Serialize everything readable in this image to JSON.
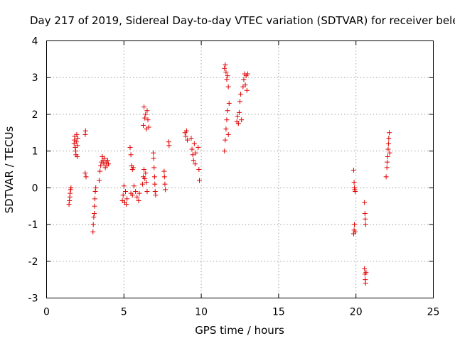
{
  "chart_data": {
    "type": "scatter",
    "title": "Day 217 of 2019, Sidereal Day-to-day VTEC variation (SDTVAR) for receiver bele",
    "xlabel": "GPS time / hours",
    "ylabel": "SDTVAR / TECUs",
    "xlim": [
      0,
      25
    ],
    "ylim": [
      -3,
      4
    ],
    "xticks": [
      0,
      5,
      10,
      15,
      20,
      25
    ],
    "yticks": [
      -3,
      -2,
      -1,
      0,
      1,
      2,
      3,
      4
    ],
    "xtick_labels": [
      "0",
      "5",
      "10",
      "15",
      "20",
      "25"
    ],
    "ytick_labels": [
      "-3",
      "-2",
      "-1",
      "0",
      "1",
      "2",
      "3",
      "4"
    ],
    "grid": true,
    "marker": "plus",
    "color": "#e00000",
    "series": [
      {
        "name": "SDTVAR",
        "points": [
          [
            1.45,
            -0.45
          ],
          [
            1.48,
            -0.35
          ],
          [
            1.5,
            -0.25
          ],
          [
            1.52,
            -0.15
          ],
          [
            1.55,
            -0.05
          ],
          [
            1.58,
            0.0
          ],
          [
            1.78,
            1.2
          ],
          [
            1.8,
            1.3
          ],
          [
            1.82,
            1.4
          ],
          [
            1.85,
            1.1
          ],
          [
            1.88,
            1.0
          ],
          [
            1.9,
            0.9
          ],
          [
            1.92,
            1.25
          ],
          [
            1.95,
            1.45
          ],
          [
            1.98,
            0.85
          ],
          [
            2.0,
            1.15
          ],
          [
            2.02,
            1.35
          ],
          [
            2.5,
            1.45
          ],
          [
            2.52,
            1.55
          ],
          [
            2.5,
            0.4
          ],
          [
            2.55,
            0.3
          ],
          [
            3.0,
            -1.2
          ],
          [
            3.02,
            -1.0
          ],
          [
            3.05,
            -0.8
          ],
          [
            3.08,
            -0.7
          ],
          [
            3.1,
            -0.5
          ],
          [
            3.12,
            -0.3
          ],
          [
            3.15,
            -0.1
          ],
          [
            3.18,
            0.0
          ],
          [
            3.4,
            0.2
          ],
          [
            3.45,
            0.45
          ],
          [
            3.5,
            0.6
          ],
          [
            3.55,
            0.7
          ],
          [
            3.6,
            0.85
          ],
          [
            3.65,
            0.75
          ],
          [
            3.7,
            0.65
          ],
          [
            3.75,
            0.8
          ],
          [
            3.8,
            0.55
          ],
          [
            3.85,
            0.7
          ],
          [
            3.9,
            0.6
          ],
          [
            3.95,
            0.75
          ],
          [
            4.0,
            0.65
          ],
          [
            4.9,
            -0.35
          ],
          [
            4.95,
            -0.2
          ],
          [
            5.0,
            0.05
          ],
          [
            5.05,
            -0.4
          ],
          [
            5.1,
            -0.1
          ],
          [
            5.15,
            -0.45
          ],
          [
            5.2,
            -0.3
          ],
          [
            5.4,
            1.1
          ],
          [
            5.45,
            0.9
          ],
          [
            5.5,
            0.6
          ],
          [
            5.55,
            0.5
          ],
          [
            5.6,
            0.55
          ],
          [
            5.45,
            -0.15
          ],
          [
            5.55,
            -0.2
          ],
          [
            5.65,
            0.05
          ],
          [
            5.75,
            -0.1
          ],
          [
            5.85,
            -0.25
          ],
          [
            5.95,
            -0.35
          ],
          [
            6.0,
            -0.15
          ],
          [
            6.2,
            0.1
          ],
          [
            6.25,
            0.3
          ],
          [
            6.3,
            0.5
          ],
          [
            6.35,
            0.25
          ],
          [
            6.4,
            0.4
          ],
          [
            6.45,
            0.15
          ],
          [
            6.5,
            -0.1
          ],
          [
            6.25,
            1.7
          ],
          [
            6.3,
            2.2
          ],
          [
            6.35,
            1.9
          ],
          [
            6.4,
            2.0
          ],
          [
            6.45,
            1.6
          ],
          [
            6.5,
            2.1
          ],
          [
            6.55,
            1.85
          ],
          [
            6.6,
            1.65
          ],
          [
            6.9,
            0.95
          ],
          [
            6.92,
            0.8
          ],
          [
            6.95,
            0.55
          ],
          [
            6.98,
            0.3
          ],
          [
            7.0,
            0.1
          ],
          [
            7.02,
            -0.1
          ],
          [
            7.05,
            -0.2
          ],
          [
            7.6,
            0.45
          ],
          [
            7.62,
            0.3
          ],
          [
            7.65,
            0.1
          ],
          [
            7.68,
            -0.05
          ],
          [
            7.9,
            1.25
          ],
          [
            7.92,
            1.15
          ],
          [
            8.95,
            1.5
          ],
          [
            9.0,
            1.4
          ],
          [
            9.05,
            1.55
          ],
          [
            9.1,
            1.3
          ],
          [
            9.35,
            1.35
          ],
          [
            9.4,
            1.05
          ],
          [
            9.45,
            0.9
          ],
          [
            9.5,
            0.75
          ],
          [
            9.55,
            1.2
          ],
          [
            9.6,
            0.65
          ],
          [
            9.65,
            0.95
          ],
          [
            9.8,
            1.1
          ],
          [
            9.85,
            0.5
          ],
          [
            9.88,
            0.2
          ],
          [
            11.5,
            1.0
          ],
          [
            11.55,
            1.3
          ],
          [
            11.6,
            1.6
          ],
          [
            11.65,
            1.85
          ],
          [
            11.7,
            2.1
          ],
          [
            11.75,
            1.45
          ],
          [
            11.8,
            2.3
          ],
          [
            11.5,
            3.25
          ],
          [
            11.55,
            3.35
          ],
          [
            11.6,
            3.15
          ],
          [
            11.65,
            2.95
          ],
          [
            11.7,
            3.05
          ],
          [
            11.75,
            2.75
          ],
          [
            12.3,
            1.8
          ],
          [
            12.35,
            1.95
          ],
          [
            12.4,
            1.75
          ],
          [
            12.45,
            2.05
          ],
          [
            12.5,
            2.35
          ],
          [
            12.55,
            2.55
          ],
          [
            12.6,
            1.85
          ],
          [
            12.7,
            2.75
          ],
          [
            12.75,
            2.95
          ],
          [
            12.8,
            3.1
          ],
          [
            12.85,
            2.8
          ],
          [
            12.9,
            3.05
          ],
          [
            12.95,
            2.65
          ],
          [
            13.0,
            3.1
          ],
          [
            19.85,
            0.48
          ],
          [
            19.88,
            0.15
          ],
          [
            19.9,
            0.0
          ],
          [
            19.92,
            -0.05
          ],
          [
            19.95,
            -0.1
          ],
          [
            19.85,
            -1.25
          ],
          [
            19.88,
            -1.15
          ],
          [
            19.9,
            -1.0
          ],
          [
            19.95,
            -1.2
          ],
          [
            20.55,
            -0.4
          ],
          [
            20.58,
            -0.7
          ],
          [
            20.6,
            -0.85
          ],
          [
            20.62,
            -1.0
          ],
          [
            20.55,
            -2.2
          ],
          [
            20.58,
            -2.35
          ],
          [
            20.6,
            -2.5
          ],
          [
            20.62,
            -2.6
          ],
          [
            20.65,
            -2.3
          ],
          [
            21.95,
            0.3
          ],
          [
            22.0,
            0.55
          ],
          [
            22.02,
            0.7
          ],
          [
            22.05,
            0.85
          ],
          [
            22.08,
            1.05
          ],
          [
            22.1,
            1.2
          ],
          [
            22.12,
            1.35
          ],
          [
            22.15,
            1.5
          ],
          [
            22.18,
            0.95
          ]
        ]
      }
    ]
  }
}
